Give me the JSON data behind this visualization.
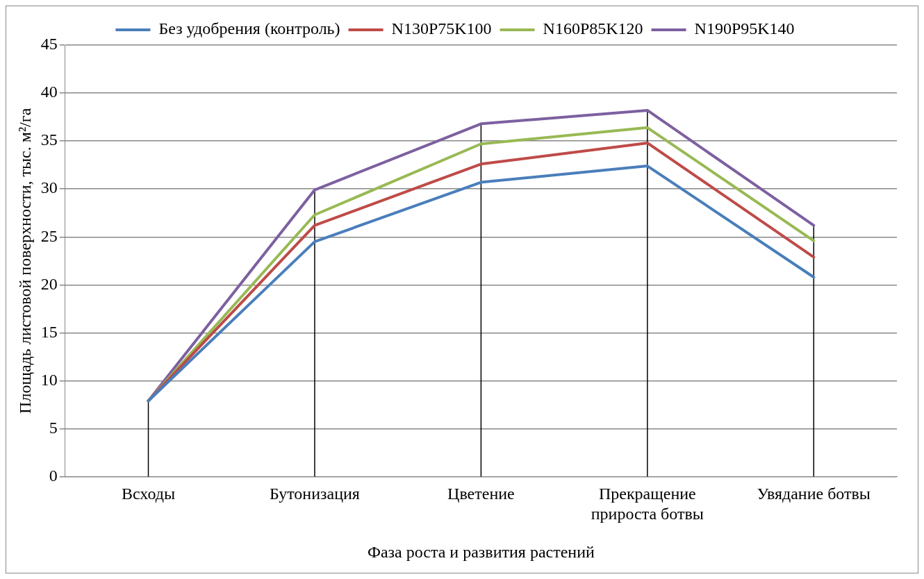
{
  "chart_data": {
    "type": "line",
    "xlabel": "Фаза роста и развития растений",
    "ylabel": "Площадь листовой поверхности, тыс. м²/га",
    "categories": [
      "Всходы",
      "Бутонизация",
      "Цветение",
      "Прекращение прироста ботвы",
      "Увядание ботвы"
    ],
    "series": [
      {
        "name": "Без удобрения (контроль)",
        "color": "#4a7ebb",
        "values": [
          7.9,
          24.5,
          30.7,
          32.4,
          20.8
        ]
      },
      {
        "name": "N130P75K100",
        "color": "#be4b48",
        "values": [
          7.9,
          26.2,
          32.6,
          34.8,
          22.9
        ]
      },
      {
        "name": "N160P85K120",
        "color": "#98b954",
        "values": [
          7.9,
          27.3,
          34.7,
          36.4,
          24.6
        ]
      },
      {
        "name": "N190P95K140",
        "color": "#7d60a0",
        "values": [
          7.9,
          29.9,
          36.8,
          38.2,
          26.2
        ]
      }
    ],
    "ref_lines": [
      {
        "axis": "x",
        "value": "Всходы",
        "color": "#000000"
      },
      {
        "axis": "x",
        "value": "Бутонизация",
        "color": "#000000"
      },
      {
        "axis": "x",
        "value": "Цветение",
        "color": "#000000"
      },
      {
        "axis": "x",
        "value": "Прекращение прироста ботвы",
        "color": "#000000"
      },
      {
        "axis": "x",
        "value": "Увядание ботвы",
        "color": "#000000"
      }
    ],
    "ylim": [
      0,
      45
    ],
    "yticks": [
      0,
      5,
      10,
      15,
      20,
      25,
      30,
      35,
      40,
      45
    ],
    "grid": "y",
    "legend": "top",
    "marker": "none",
    "line_style": "solid"
  }
}
